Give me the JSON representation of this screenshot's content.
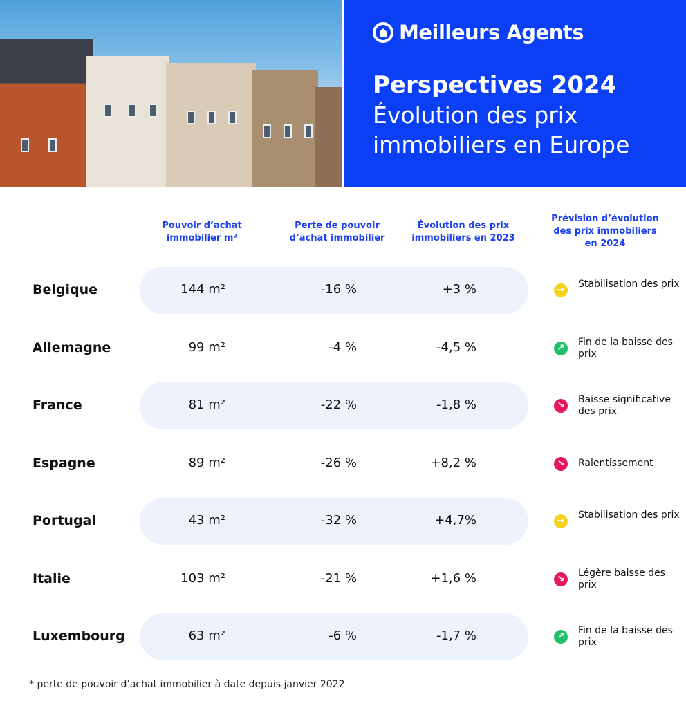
{
  "header": {
    "brand": "Meilleurs Agents",
    "title": "Perspectives 2024",
    "subtitle_line1": "Évolution des prix",
    "subtitle_line2": "immobiliers en Europe"
  },
  "columns": [
    "Pouvoir d’achat immobilier m²",
    "Perte de pouvoir d’achat immobilier",
    "Évolution des prix immobiliers en 2023",
    "Prévision d’évolution des prix immobiliers en 2024"
  ],
  "colors": {
    "brand": "#0b3ff5",
    "stable": "#f7d21a",
    "up": "#22c06a",
    "down": "#e8175d",
    "pill": "#eef2fc"
  },
  "rows": [
    {
      "country": "Belgique",
      "m2": "144 m²",
      "loss": "-16 %",
      "evo": "+3 %",
      "icon": "arrow-right-icon",
      "trend": "stable",
      "pred": "Stabilisation des prix"
    },
    {
      "country": "Allemagne",
      "m2": "99 m²",
      "loss": "-4 %",
      "evo": "-4,5 %",
      "icon": "arrow-up-right-icon",
      "trend": "up",
      "pred": "Fin de la baisse des prix"
    },
    {
      "country": "France",
      "m2": "81 m²",
      "loss": "-22 %",
      "evo": "-1,8 %",
      "icon": "arrow-down-right-icon",
      "trend": "down",
      "pred": "Baisse significative des prix"
    },
    {
      "country": "Espagne",
      "m2": "89 m²",
      "loss": "-26 %",
      "evo": "+8,2 %",
      "icon": "arrow-down-right-icon",
      "trend": "down",
      "pred": "Ralentissement"
    },
    {
      "country": "Portugal",
      "m2": "43 m²",
      "loss": "-32 %",
      "evo": "+4,7%",
      "icon": "arrow-right-icon",
      "trend": "stable",
      "pred": "Stabilisation des prix"
    },
    {
      "country": "Italie",
      "m2": "103 m²",
      "loss": "-21 %",
      "evo": "+1,6 %",
      "icon": "arrow-down-right-icon",
      "trend": "down",
      "pred": "Légère baisse des prix"
    },
    {
      "country": "Luxembourg",
      "m2": "63 m²",
      "loss": "-6 %",
      "evo": "-1,7 %",
      "icon": "arrow-up-right-icon",
      "trend": "up",
      "pred": "Fin de la baisse des prix"
    }
  ],
  "footnote": "* perte de pouvoir d’achat immobilier à date depuis janvier 2022"
}
